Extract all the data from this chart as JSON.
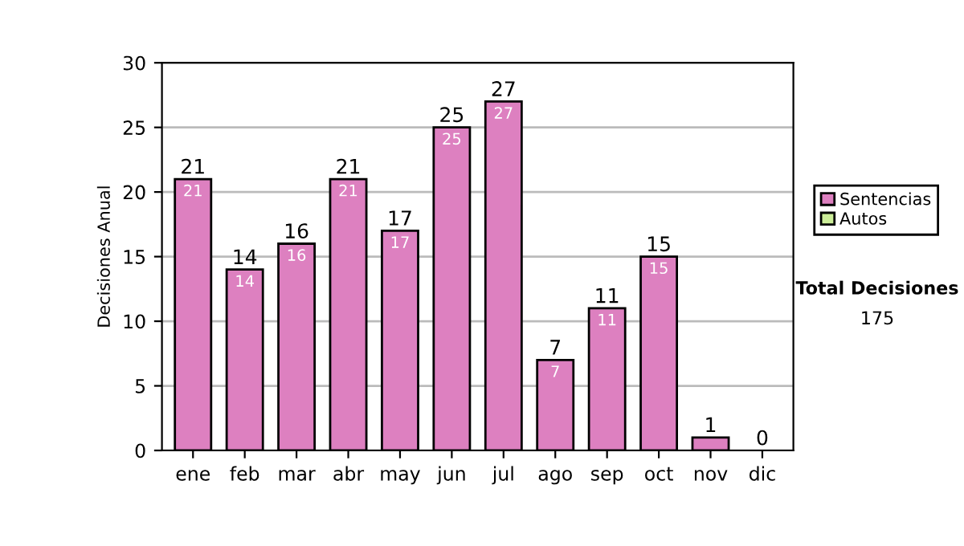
{
  "chart_data": {
    "type": "bar",
    "stacked": true,
    "ylabel": "Decisiones Anual",
    "categories": [
      "ene",
      "feb",
      "mar",
      "abr",
      "may",
      "jun",
      "jul",
      "ago",
      "sep",
      "oct",
      "nov",
      "dic"
    ],
    "series": [
      {
        "name": "Sentencias",
        "color": "#dd80c0",
        "values": [
          21,
          14,
          16,
          21,
          17,
          25,
          27,
          7,
          11,
          15,
          1,
          0
        ],
        "value_labels": [
          "21",
          "14",
          "16",
          "21",
          "17",
          "25",
          "27",
          "7",
          "11",
          "15",
          null,
          null
        ]
      },
      {
        "name": "Autos",
        "color": "#ccee99",
        "values": [
          0,
          0,
          0,
          0,
          0,
          0,
          0,
          0,
          0,
          0,
          0,
          0
        ]
      }
    ],
    "totals": [
      "21",
      "14",
      "16",
      "21",
      "17",
      "25",
      "27",
      "7",
      "11",
      "15",
      "1",
      "0"
    ],
    "ylim": [
      0,
      30
    ],
    "yticks": [
      0,
      5,
      10,
      15,
      20,
      25,
      30
    ],
    "grid": "y",
    "legend": "right",
    "annotations": [
      "Total Decisiones",
      "175"
    ]
  }
}
